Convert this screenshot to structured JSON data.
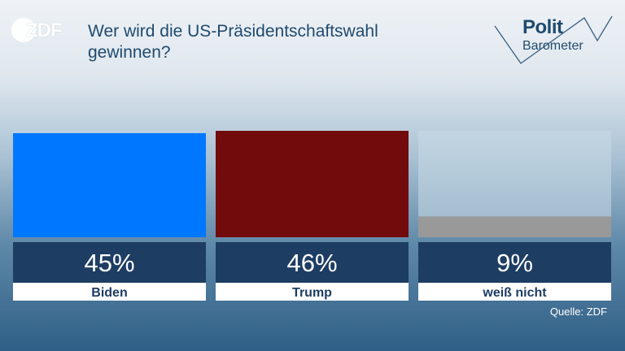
{
  "logo": {
    "text": "ZDF",
    "icon": "zdf-logo-icon"
  },
  "title": "Wer wird die US-Präsidentschaftswahl gewinnen?",
  "brand": {
    "line1": "Polit",
    "line2": "Barometer"
  },
  "source": "Quelle: ZDF",
  "colors": {
    "biden": "#0077ff",
    "trump": "#720c0c",
    "weiss_nicht": "#999999",
    "value_box": "#1e3d63",
    "label_box": "#ffffff",
    "title": "#1f4a6e"
  },
  "chart_data": {
    "type": "bar",
    "title": "Wer wird die US-Präsidentschaftswahl gewinnen?",
    "categories": [
      "Biden",
      "Trump",
      "weiß nicht"
    ],
    "values": [
      45,
      46,
      9
    ],
    "value_labels": [
      "45%",
      "46%",
      "9%"
    ],
    "unit": "%",
    "ylim": [
      0,
      46
    ],
    "grid": false,
    "legend": "none"
  }
}
